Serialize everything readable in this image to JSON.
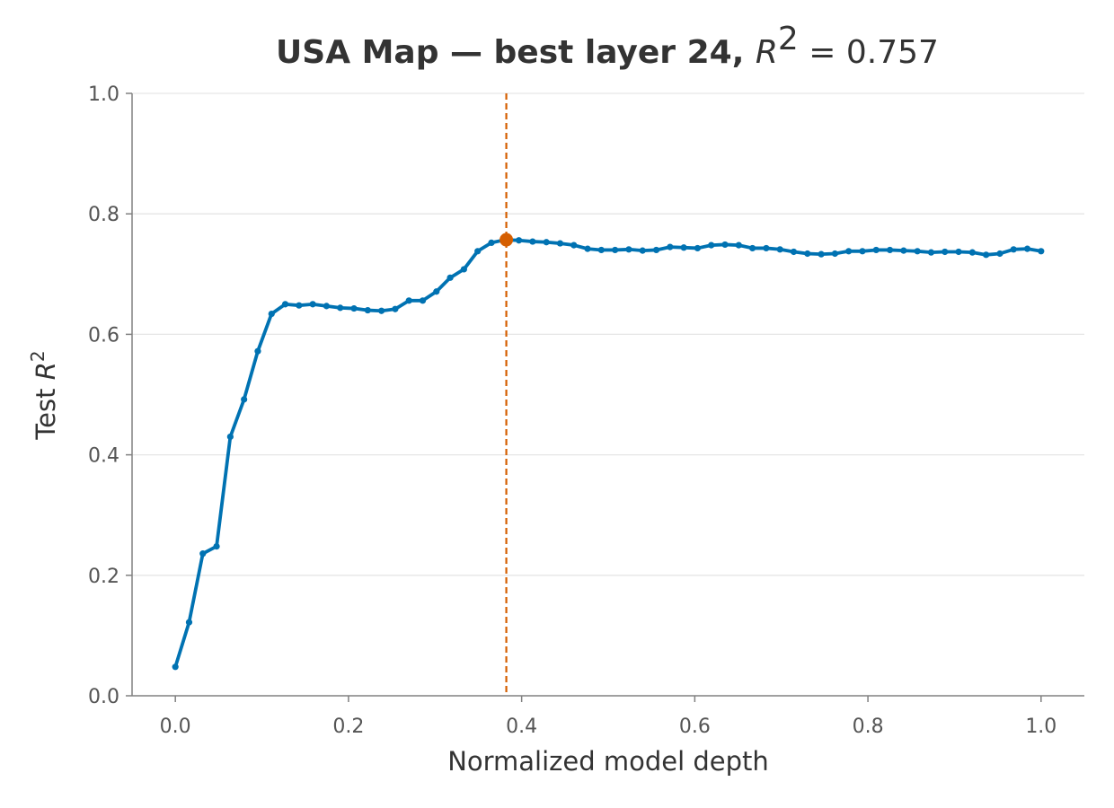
{
  "chart_data": {
    "type": "line",
    "title": {
      "prefix": "USA Map — best layer 24, ",
      "math_var": "R",
      "math_sup": "2",
      "math_rest": " = 0.757"
    },
    "xlabel": "Normalized model depth",
    "ylabel": {
      "text": "Test ",
      "var": "R",
      "sup": "2"
    },
    "xlim": [
      -0.05,
      1.05
    ],
    "ylim": [
      0.0,
      1.0
    ],
    "x_ticks": [
      0.0,
      0.2,
      0.4,
      0.6,
      0.8,
      1.0
    ],
    "x_tick_labels": [
      "0.0",
      "0.2",
      "0.4",
      "0.6",
      "0.8",
      "1.0"
    ],
    "y_ticks": [
      0.0,
      0.2,
      0.4,
      0.6,
      0.8,
      1.0
    ],
    "y_tick_labels": [
      "0.0",
      "0.2",
      "0.4",
      "0.6",
      "0.8",
      "1.0"
    ],
    "grid": "horizontal",
    "series": [
      {
        "color": "#0072b2",
        "x_start": 0.0,
        "x_end": 1.0,
        "values": [
          0.048,
          0.122,
          0.236,
          0.248,
          0.43,
          0.492,
          0.572,
          0.634,
          0.65,
          0.648,
          0.65,
          0.647,
          0.644,
          0.643,
          0.64,
          0.639,
          0.642,
          0.656,
          0.656,
          0.671,
          0.694,
          0.708,
          0.738,
          0.752,
          0.757,
          0.756,
          0.754,
          0.753,
          0.751,
          0.748,
          0.742,
          0.74,
          0.74,
          0.741,
          0.739,
          0.74,
          0.745,
          0.744,
          0.743,
          0.748,
          0.749,
          0.748,
          0.743,
          0.743,
          0.741,
          0.737,
          0.734,
          0.733,
          0.734,
          0.738,
          0.738,
          0.74,
          0.74,
          0.739,
          0.738,
          0.736,
          0.737,
          0.737,
          0.736,
          0.732,
          0.734,
          0.741,
          0.742,
          0.738
        ]
      }
    ],
    "highlight": {
      "x": 0.3823,
      "y": 0.757,
      "color": "#d55e00"
    }
  }
}
